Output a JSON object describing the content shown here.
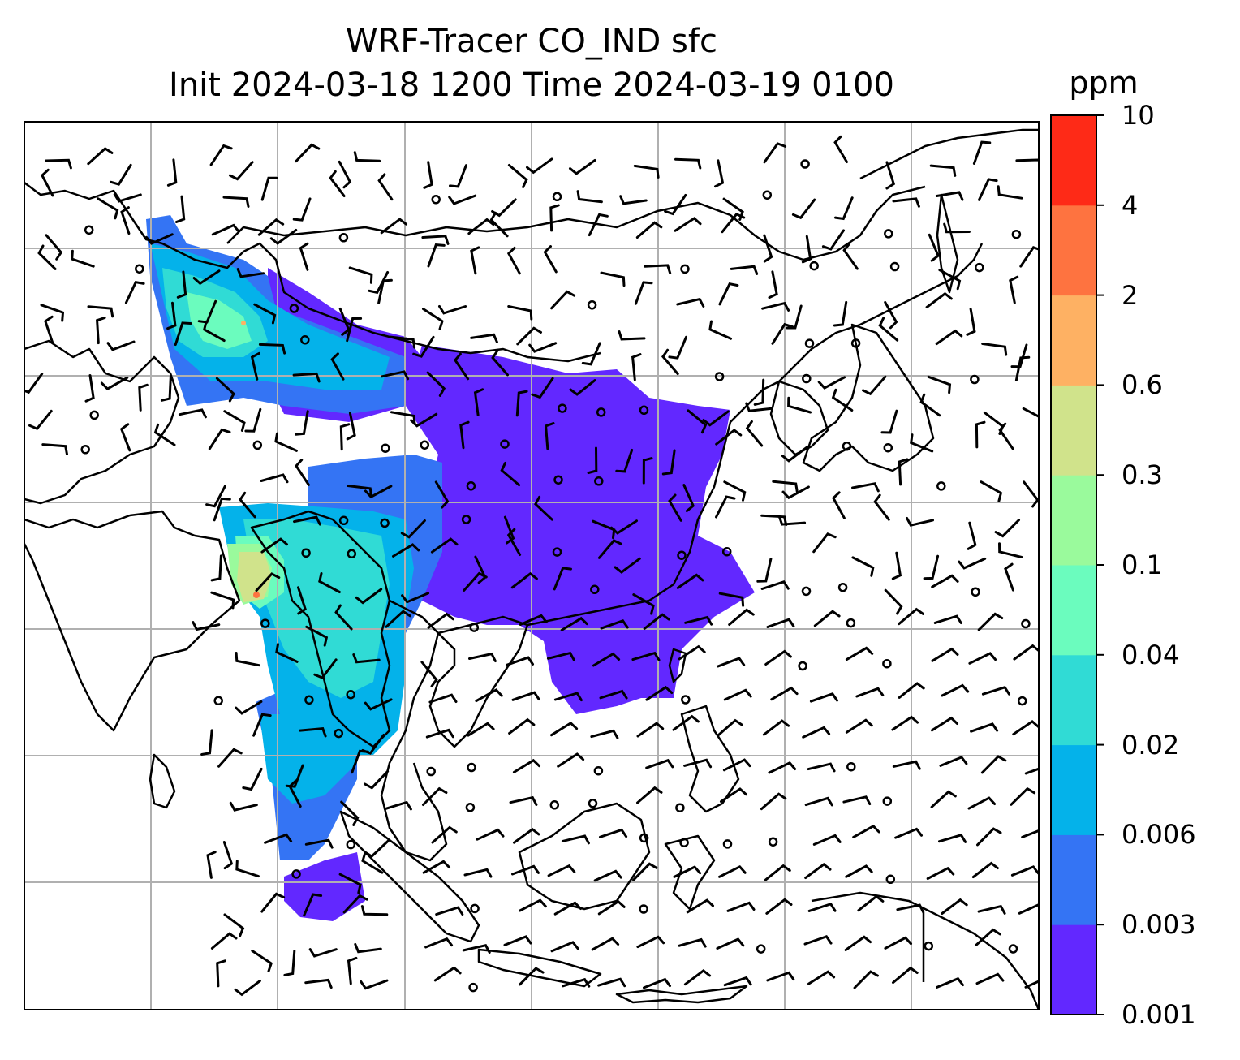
{
  "title": {
    "line1": "WRF-Tracer CO_IND sfc",
    "line2": "Init 2024-03-18 1200 Time 2024-03-19 0100"
  },
  "colorbar": {
    "unit": "ppm",
    "levels": [
      "0.001",
      "0.003",
      "0.006",
      "0.02",
      "0.04",
      "0.1",
      "0.3",
      "0.6",
      "2",
      "4",
      "10"
    ],
    "colors": [
      "#6228ff",
      "#3474f4",
      "#04b2ea",
      "#30dbd5",
      "#6bfcbe",
      "#9afa9c",
      "#d0e38b",
      "#feb163",
      "#fe7340",
      "#fe2a17"
    ]
  },
  "map": {
    "projection": "lat-lon",
    "gridlines": true,
    "features": [
      "coastlines",
      "country-borders",
      "wind-barbs",
      "calm-circles"
    ],
    "field": "CO_IND"
  }
}
